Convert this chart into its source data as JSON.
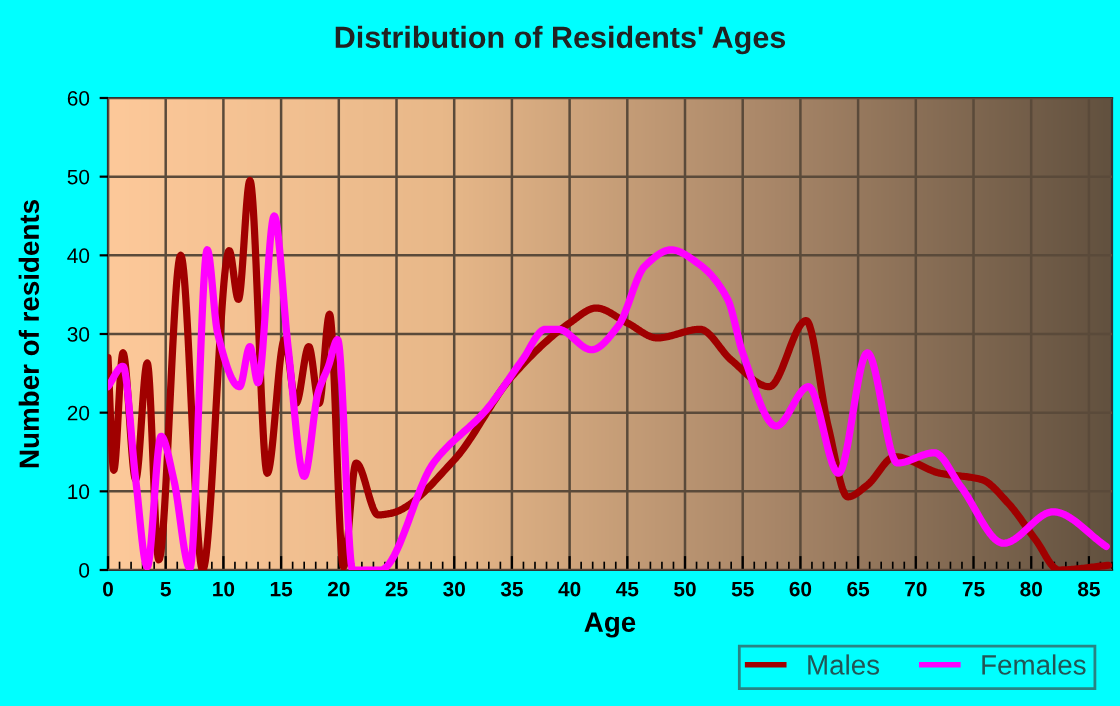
{
  "chart_data": {
    "type": "line",
    "title": "Distribution of Residents' Ages",
    "xlabel": "Age",
    "ylabel": "Number of residents",
    "xlim": [
      0,
      87
    ],
    "xticks": [
      0,
      5,
      10,
      15,
      20,
      25,
      30,
      35,
      40,
      45,
      50,
      55,
      60,
      65,
      70,
      75,
      80,
      85
    ],
    "ylim": [
      0,
      60
    ],
    "yticks": [
      0,
      10,
      20,
      30,
      40,
      50,
      60
    ],
    "grid": true,
    "legend": "bottom right",
    "marker": "none",
    "line_style": "solid",
    "series": [
      {
        "name": "Males",
        "color": "#a00000",
        "x": [
          0,
          0.5,
          1.3,
          2.4,
          3.4,
          4.4,
          6.3,
          8.2,
          10.5,
          11.3,
          12.3,
          13.8,
          15.3,
          16.3,
          17.4,
          18.3,
          19.2,
          20.4,
          21.5,
          23.4,
          24.5,
          30,
          35,
          40,
          42.3,
          45,
          47.6,
          51.3,
          54,
          57.3,
          60.5,
          62.4,
          64.1,
          65.8,
          68.2,
          72.1,
          75.7,
          78,
          80.4,
          82.4,
          86.7
        ],
        "values": [
          27,
          12.7,
          27.6,
          11.5,
          26.3,
          1.3,
          40,
          0,
          40.6,
          34.4,
          49.5,
          12.3,
          29.3,
          21.2,
          28.4,
          21.2,
          32.5,
          0.4,
          13.6,
          7,
          7.2,
          14,
          24.6,
          31.4,
          33.3,
          31.4,
          29.5,
          30.6,
          26.7,
          23.3,
          31.7,
          18.3,
          9.3,
          10.8,
          14.4,
          12.3,
          11.5,
          8.5,
          3.8,
          0,
          0.6
        ]
      },
      {
        "name": "Females",
        "color": "#ff00ff",
        "x": [
          0,
          1.3,
          2.4,
          3.4,
          4.6,
          5.7,
          7.1,
          8.6,
          9.5,
          11.4,
          12.3,
          13,
          14.4,
          15.6,
          17,
          18.2,
          19.1,
          19.9,
          21.2,
          22.8,
          23.6,
          28.2,
          32.8,
          35.9,
          37.9,
          39,
          41.9,
          44.2,
          46.5,
          48.8,
          51.1,
          53.7,
          55,
          57.9,
          60.7,
          63.3,
          65.8,
          68.4,
          71.6,
          73.9,
          77.6,
          81.9,
          86.5
        ],
        "values": [
          23.3,
          25.9,
          11.5,
          0.4,
          17,
          11.5,
          0.2,
          40.7,
          30.1,
          23.3,
          28.4,
          23.8,
          45,
          28.4,
          11.9,
          22.5,
          25.9,
          29.3,
          0,
          0,
          0,
          13.6,
          20.4,
          26.7,
          30.6,
          30.6,
          28,
          31,
          38.6,
          40.7,
          39,
          34.4,
          27.6,
          18.3,
          23.3,
          12.3,
          27.6,
          13.6,
          14.9,
          10.6,
          3.4,
          7.4,
          3
        ]
      }
    ]
  }
}
